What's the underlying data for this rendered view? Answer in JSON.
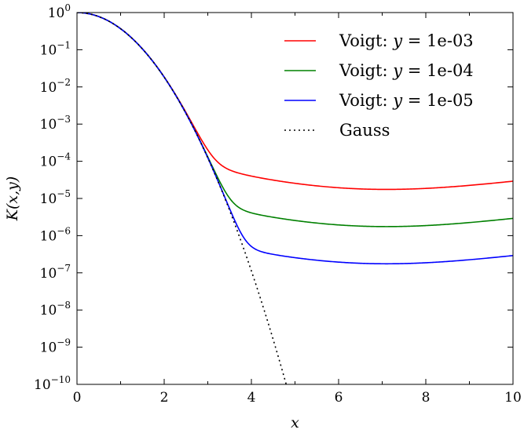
{
  "chart_data": {
    "type": "line",
    "xlabel": "x",
    "ylabel": "K(x,y)",
    "xlim": [
      0,
      10
    ],
    "ylim": [
      1e-10,
      1
    ],
    "yscale": "log",
    "grid": false,
    "legend_position": "top-right",
    "x_ticks": [
      {
        "value": 0,
        "label": "0"
      },
      {
        "value": 2,
        "label": "2"
      },
      {
        "value": 4,
        "label": "4"
      },
      {
        "value": 6,
        "label": "6"
      },
      {
        "value": 8,
        "label": "8"
      },
      {
        "value": 10,
        "label": "10"
      }
    ],
    "y_ticks": [
      {
        "value": 1e-10,
        "base": "10",
        "exp": "−10"
      },
      {
        "value": 1e-09,
        "base": "10",
        "exp": "−9"
      },
      {
        "value": 1e-08,
        "base": "10",
        "exp": "−8"
      },
      {
        "value": 1e-07,
        "base": "10",
        "exp": "−7"
      },
      {
        "value": 1e-06,
        "base": "10",
        "exp": "−6"
      },
      {
        "value": 1e-05,
        "base": "10",
        "exp": "−5"
      },
      {
        "value": 0.0001,
        "base": "10",
        "exp": "−4"
      },
      {
        "value": 0.001,
        "base": "10",
        "exp": "−3"
      },
      {
        "value": 0.01,
        "base": "10",
        "exp": "−2"
      },
      {
        "value": 0.1,
        "base": "10",
        "exp": "−1"
      },
      {
        "value": 1,
        "base": "10",
        "exp": "0"
      }
    ],
    "series": [
      {
        "name": "Voigt: y = 1e-03",
        "label_prefix": "Voigt: ",
        "label_var": "y",
        "label_suffix": " = 1e-03",
        "color": "#ff0000",
        "style": "solid",
        "y_param": 0.001
      },
      {
        "name": "Voigt: y = 1e-04",
        "label_prefix": "Voigt: ",
        "label_var": "y",
        "label_suffix": " = 1e-04",
        "color": "#008000",
        "style": "solid",
        "y_param": 0.0001
      },
      {
        "name": "Voigt: y = 1e-05",
        "label_prefix": "Voigt: ",
        "label_var": "y",
        "label_suffix": " = 1e-05",
        "color": "#0000ff",
        "style": "solid",
        "y_param": 1e-05
      },
      {
        "name": "Gauss",
        "label_prefix": "Gauss",
        "label_var": "",
        "label_suffix": "",
        "color": "#000000",
        "style": "dotted",
        "y_param": 0
      }
    ]
  }
}
